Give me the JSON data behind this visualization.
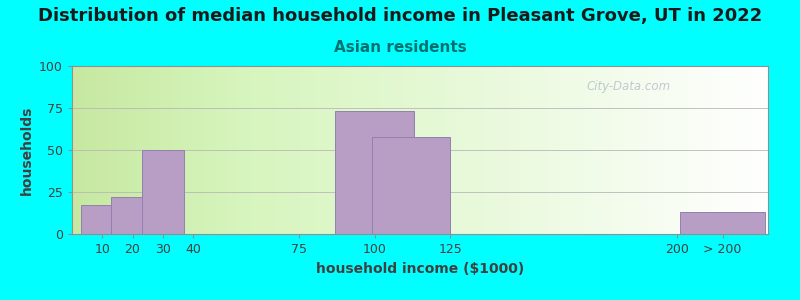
{
  "title": "Distribution of median household income in Pleasant Grove, UT in 2022",
  "subtitle": "Asian residents",
  "xlabel": "household income ($1000)",
  "ylabel": "households",
  "background_outer": "#00FFFF",
  "bar_color": "#b89ec4",
  "bar_edge_color": "#9080b0",
  "yticks": [
    0,
    25,
    50,
    75,
    100
  ],
  "ylim": [
    0,
    100
  ],
  "xlim": [
    0,
    230
  ],
  "xtick_positions": [
    10,
    20,
    30,
    40,
    75,
    100,
    125,
    200,
    215
  ],
  "xtick_labels": [
    "10",
    "20",
    "30",
    "40",
    "75",
    "100",
    "125",
    "200",
    "> 200"
  ],
  "bar_centers": [
    10,
    20,
    30,
    40,
    100,
    112,
    215
  ],
  "bar_heights": [
    17,
    22,
    50,
    0,
    73,
    58,
    13
  ],
  "bar_half_widths": [
    7,
    7,
    7,
    7,
    13,
    13,
    14
  ],
  "title_fontsize": 13,
  "subtitle_fontsize": 11,
  "axis_label_fontsize": 10,
  "tick_fontsize": 9,
  "watermark": "City-Data.com"
}
